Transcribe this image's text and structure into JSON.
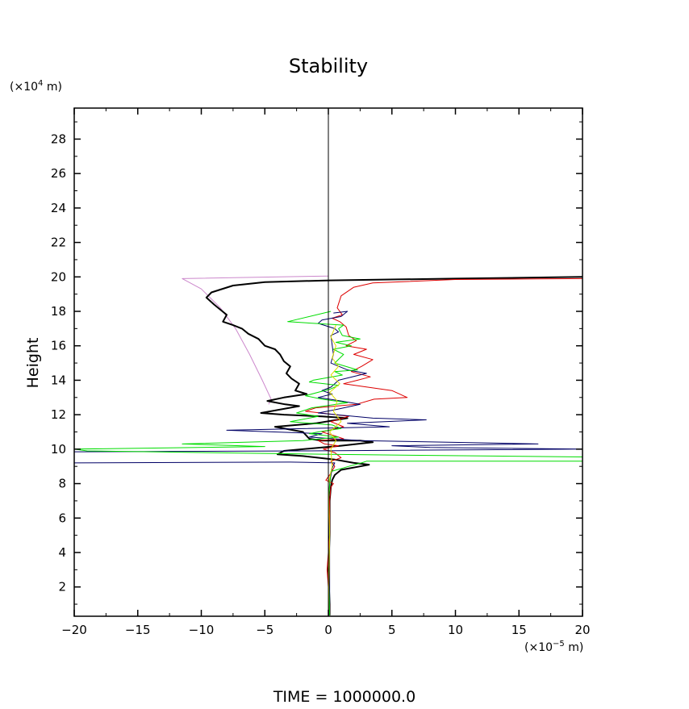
{
  "chart_data": {
    "type": "line",
    "title": "Stability",
    "xlabel": "",
    "ylabel": "Height",
    "x_unit_prefix": "(×10",
    "x_unit_exp": "−5",
    "x_unit_suffix": " m)",
    "y_unit_prefix": "(×10",
    "y_unit_exp": "4",
    "y_unit_suffix": " m)",
    "footer": "TIME  =  1000000.0",
    "xlim": [
      -20,
      20
    ],
    "ylim": [
      0.3,
      29.8
    ],
    "x_ticks": [
      -20,
      -15,
      -10,
      -5,
      0,
      5,
      10,
      15,
      20
    ],
    "x_tick_labels": [
      "−20",
      "−15",
      "−10",
      "−5",
      "0",
      "5",
      "10",
      "15",
      "20"
    ],
    "y_ticks": [
      2,
      4,
      6,
      8,
      10,
      12,
      14,
      16,
      18,
      20,
      22,
      24,
      26,
      28
    ],
    "y_tick_labels": [
      "2",
      "4",
      "6",
      "8",
      "10",
      "12",
      "14",
      "16",
      "18",
      "20",
      "22",
      "24",
      "26",
      "28"
    ],
    "zero_line_x": 0,
    "grid": false,
    "series": [
      {
        "color": "#cc88cc",
        "width": 1,
        "points": [
          [
            0,
            20.05
          ],
          [
            -11.5,
            19.9
          ],
          [
            -10,
            19.3
          ],
          [
            -8.5,
            18.2
          ],
          [
            -7.3,
            17
          ],
          [
            -6.2,
            15.5
          ],
          [
            -5.2,
            14
          ],
          [
            -4.5,
            12.9
          ],
          [
            -4.7,
            12.6
          ]
        ]
      },
      {
        "color": "#000000",
        "width": 2,
        "points": [
          [
            20,
            20.0
          ],
          [
            10,
            19.9
          ],
          [
            0.1,
            19.8
          ],
          [
            -5,
            19.7
          ],
          [
            -7.5,
            19.5
          ],
          [
            -9.2,
            19.1
          ],
          [
            -9.6,
            18.8
          ],
          [
            -9,
            18.4
          ],
          [
            -8.5,
            18.1
          ],
          [
            -8,
            17.8
          ],
          [
            -8.3,
            17.4
          ],
          [
            -7.5,
            17.2
          ],
          [
            -6.8,
            17
          ],
          [
            -6.3,
            16.7
          ],
          [
            -5.5,
            16.4
          ],
          [
            -5,
            16.0
          ],
          [
            -4.2,
            15.8
          ],
          [
            -3.8,
            15.5
          ],
          [
            -3.5,
            15.1
          ],
          [
            -3.0,
            14.8
          ],
          [
            -3.3,
            14.4
          ],
          [
            -2.9,
            14.1
          ],
          [
            -2.3,
            13.8
          ],
          [
            -2.6,
            13.4
          ],
          [
            -1.7,
            13.2
          ],
          [
            -3.5,
            13.0
          ],
          [
            -4.8,
            12.8
          ],
          [
            -3.4,
            12.6
          ],
          [
            -2.3,
            12.5
          ],
          [
            -5.3,
            12.1
          ],
          [
            -3.5,
            12.0
          ],
          [
            -0.5,
            11.9
          ],
          [
            1.5,
            11.8
          ],
          [
            -1,
            11.5
          ],
          [
            -4.2,
            11.3
          ],
          [
            -2,
            11.0
          ],
          [
            -1.5,
            10.6
          ],
          [
            -0.5,
            10.5
          ],
          [
            2.5,
            10.5
          ],
          [
            3.5,
            10.4
          ],
          [
            1.0,
            10.2
          ],
          [
            -3.5,
            9.9
          ],
          [
            -4,
            9.7
          ],
          [
            -2,
            9.6
          ],
          [
            0.5,
            9.4
          ],
          [
            2,
            9.2
          ],
          [
            3.2,
            9.1
          ],
          [
            2.5,
            9.0
          ],
          [
            1,
            8.8
          ],
          [
            0.5,
            8.5
          ],
          [
            0.3,
            8.2
          ],
          [
            0.2,
            7.8
          ],
          [
            0.1,
            7.0
          ],
          [
            0.1,
            5.0
          ],
          [
            0.0,
            3.0
          ],
          [
            0.1,
            1.0
          ],
          [
            0.1,
            0.35
          ]
        ]
      },
      {
        "color": "#dd0000",
        "width": 1,
        "points": [
          [
            20,
            19.9
          ],
          [
            10,
            19.85
          ],
          [
            3.5,
            19.65
          ],
          [
            2,
            19.4
          ],
          [
            1.0,
            18.9
          ],
          [
            0.7,
            18.2
          ],
          [
            1.1,
            17.8
          ],
          [
            0.3,
            17.6
          ],
          [
            0.9,
            17.4
          ],
          [
            1.4,
            17.1
          ],
          [
            1.6,
            16.6
          ],
          [
            2.2,
            16.3
          ],
          [
            1.4,
            16.0
          ],
          [
            3.0,
            15.8
          ],
          [
            2.0,
            15.5
          ],
          [
            3.5,
            15.2
          ],
          [
            2.6,
            14.8
          ],
          [
            1.8,
            14.5
          ],
          [
            3.3,
            14.2
          ],
          [
            2.3,
            14
          ],
          [
            1.2,
            13.8
          ],
          [
            5,
            13.4
          ],
          [
            6.2,
            13.0
          ],
          [
            3.6,
            12.9
          ],
          [
            2.2,
            12.6
          ],
          [
            -1.0,
            12.4
          ],
          [
            -1.8,
            12.2
          ],
          [
            0.6,
            12.0
          ],
          [
            1.6,
            11.9
          ],
          [
            0.2,
            11.6
          ],
          [
            1.2,
            11.3
          ],
          [
            -0.5,
            11.0
          ],
          [
            0.4,
            10.8
          ],
          [
            1.2,
            10.6
          ],
          [
            -0.8,
            10.5
          ],
          [
            -0.3,
            10.3
          ],
          [
            0.8,
            10.2
          ],
          [
            -0.4,
            10.0
          ],
          [
            0.5,
            9.8
          ],
          [
            1.0,
            9.5
          ],
          [
            0.2,
            9.3
          ],
          [
            0.5,
            9.0
          ],
          [
            0.2,
            8.6
          ],
          [
            -0.2,
            8.2
          ],
          [
            0.4,
            8.0
          ],
          [
            0.2,
            7.8
          ],
          [
            0.1,
            7.0
          ],
          [
            0.1,
            5.0
          ],
          [
            -0.1,
            3.0
          ],
          [
            0.1,
            1.0
          ],
          [
            0.1,
            0.35
          ]
        ]
      },
      {
        "color": "#000066",
        "width": 1,
        "points": [
          [
            0.4,
            17.9
          ],
          [
            1.5,
            18.0
          ],
          [
            1.0,
            17.7
          ],
          [
            -0.5,
            17.5
          ],
          [
            -0.8,
            17.3
          ],
          [
            0.5,
            17.0
          ],
          [
            0.8,
            16.8
          ],
          [
            0.2,
            16.6
          ],
          [
            0.4,
            15.5
          ],
          [
            0.2,
            15.0
          ],
          [
            1.5,
            14.6
          ],
          [
            3.0,
            14.4
          ],
          [
            0.8,
            14.0
          ],
          [
            0.5,
            13.8
          ],
          [
            0.2,
            13.6
          ],
          [
            -0.5,
            13.4
          ],
          [
            0.3,
            13.2
          ],
          [
            -0.8,
            13.0
          ],
          [
            1,
            12.8
          ],
          [
            2.5,
            12.6
          ],
          [
            0.6,
            12.3
          ],
          [
            -0.8,
            12.1
          ],
          [
            3.5,
            11.8
          ],
          [
            7.7,
            11.7
          ],
          [
            1.5,
            11.5
          ],
          [
            4.8,
            11.3
          ],
          [
            -8,
            11.1
          ],
          [
            -0.5,
            10.9
          ],
          [
            -1.5,
            10.7
          ],
          [
            2.5,
            10.5
          ],
          [
            16.5,
            10.3
          ],
          [
            5.0,
            10.2
          ],
          [
            8,
            10.1
          ],
          [
            20,
            10.0
          ],
          [
            -2,
            9.9
          ],
          [
            -20,
            9.85
          ],
          [
            -20,
            9.2
          ],
          [
            -3,
            9.25
          ],
          [
            0.5,
            9.2
          ],
          [
            0.3,
            8.9
          ],
          [
            0.1,
            8.0
          ],
          [
            0.0,
            7.0
          ],
          [
            0.1,
            5.0
          ],
          [
            0.1,
            3.0
          ],
          [
            0.1,
            1.0
          ],
          [
            0.1,
            0.35
          ]
        ]
      },
      {
        "color": "#00dd00",
        "width": 1,
        "points": [
          [
            0.2,
            18.0
          ],
          [
            -3.2,
            17.4
          ],
          [
            1.2,
            17.2
          ],
          [
            0.8,
            17.0
          ],
          [
            1.1,
            16.6
          ],
          [
            2.5,
            16.4
          ],
          [
            0.6,
            16.2
          ],
          [
            1.8,
            16.0
          ],
          [
            0.4,
            15.8
          ],
          [
            1.2,
            15.5
          ],
          [
            0.5,
            15.0
          ],
          [
            2.3,
            14.6
          ],
          [
            0.5,
            14.5
          ],
          [
            1.1,
            14.3
          ],
          [
            -1.2,
            14.0
          ],
          [
            -1.5,
            13.9
          ],
          [
            0.8,
            13.7
          ],
          [
            0.2,
            13.5
          ],
          [
            -1.8,
            13.1
          ],
          [
            -0.5,
            12.9
          ],
          [
            1.5,
            12.7
          ],
          [
            -1.3,
            12.4
          ],
          [
            -2.5,
            12.1
          ],
          [
            -0.8,
            11.9
          ],
          [
            -3.0,
            11.6
          ],
          [
            0.3,
            11.4
          ],
          [
            1.0,
            11.2
          ],
          [
            -0.8,
            11.0
          ],
          [
            -1.5,
            10.9
          ],
          [
            0.8,
            10.7
          ],
          [
            -2.0,
            10.5
          ],
          [
            -11.5,
            10.3
          ],
          [
            -5,
            10.15
          ],
          [
            -20,
            10.0
          ],
          [
            -19,
            9.9
          ],
          [
            0.1,
            9.7
          ],
          [
            20,
            9.55
          ],
          [
            20,
            9.3
          ],
          [
            3,
            9.3
          ],
          [
            2.6,
            9.2
          ],
          [
            1.6,
            9.0
          ],
          [
            0.2,
            8.7
          ],
          [
            0.0,
            7.0
          ],
          [
            0.0,
            3.0
          ],
          [
            0.1,
            0.35
          ]
        ]
      },
      {
        "color": "#dddd00",
        "width": 1,
        "points": [
          [
            0.6,
            17.2
          ],
          [
            0.2,
            16.5
          ],
          [
            0.6,
            16.0
          ],
          [
            0.3,
            15.3
          ],
          [
            0.8,
            14.8
          ],
          [
            0.2,
            14.3
          ],
          [
            0.9,
            13.8
          ],
          [
            0.1,
            13.3
          ],
          [
            0.7,
            12.8
          ],
          [
            0.4,
            12.2
          ],
          [
            1.0,
            11.6
          ],
          [
            0.1,
            11.0
          ],
          [
            0.6,
            10.5
          ],
          [
            0.2,
            10.0
          ],
          [
            0.3,
            9.0
          ],
          [
            0.0,
            8.0
          ],
          [
            0.1,
            5.0
          ],
          [
            0.0,
            0.35
          ]
        ]
      }
    ]
  }
}
